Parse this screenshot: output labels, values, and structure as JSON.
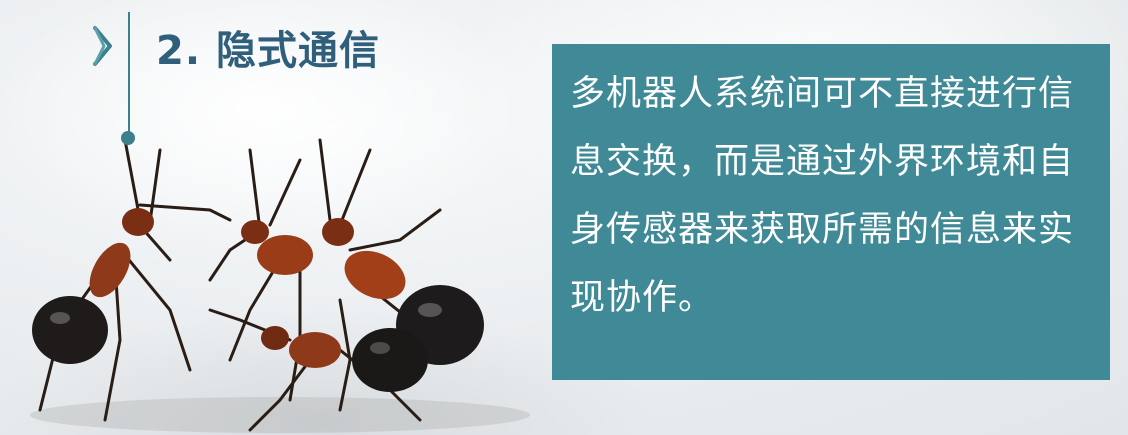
{
  "slide": {
    "title": "2. 隐式通信",
    "description": "多机器人系统间可不直接进行信息交换，而是通过外界环境和自身传感器来获取所需的信息来实现协作。",
    "colors": {
      "accent": "#3f8a96",
      "title": "#2f5f7a",
      "text_on_panel": "#ffffff"
    }
  },
  "icons": {
    "bullet": "chevron-right-icon",
    "image": "ants-illustration"
  }
}
